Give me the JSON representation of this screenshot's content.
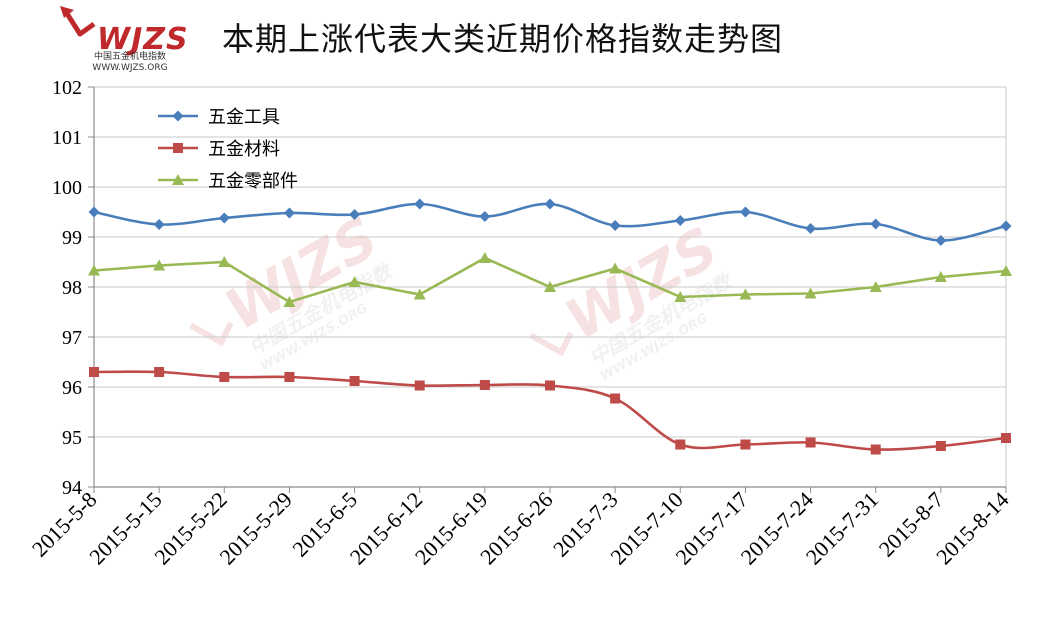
{
  "header": {
    "title": "本期上涨代表大类近期价格指数走势图",
    "logo_text": "WJZS",
    "logo_sub_cn": "中国五金机电指数",
    "logo_sub_url": "WWW.WJZS.ORG"
  },
  "watermark": {
    "mark": "WJZS",
    "cn": "中国五金机电指数",
    "url": "WWW.WJZS.ORG"
  },
  "chart_data": {
    "type": "line",
    "title": "本期上涨代表大类近期价格指数走势图",
    "categories": [
      "2015-5-8",
      "2015-5-15",
      "2015-5-22",
      "2015-5-29",
      "2015-6-5",
      "2015-6-12",
      "2015-6-19",
      "2015-6-26",
      "2015-7-3",
      "2015-7-10",
      "2015-7-17",
      "2015-7-24",
      "2015-7-31",
      "2015-8-7",
      "2015-8-14"
    ],
    "ylim": [
      94,
      102
    ],
    "yticks": [
      "94",
      "95",
      "96",
      "97",
      "98",
      "99",
      "100",
      "101",
      "102"
    ],
    "grid": true,
    "legend_position": "top-left",
    "series": [
      {
        "name": "五金工具",
        "color": "#4a7ebb",
        "marker": "diamond",
        "smooth": true,
        "values": [
          99.5,
          99.25,
          99.38,
          99.48,
          99.45,
          99.66,
          99.41,
          99.66,
          99.23,
          99.33,
          99.5,
          99.17,
          99.26,
          98.93,
          99.22
        ]
      },
      {
        "name": "五金材料",
        "color": "#be4b48",
        "marker": "square",
        "smooth": true,
        "values": [
          96.3,
          96.3,
          96.2,
          96.2,
          96.12,
          96.03,
          96.04,
          96.03,
          95.77,
          94.85,
          94.85,
          94.89,
          94.75,
          94.82,
          94.98
        ]
      },
      {
        "name": "五金零部件",
        "color": "#98b954",
        "marker": "triangle",
        "smooth": false,
        "values": [
          98.33,
          98.43,
          98.5,
          97.7,
          98.1,
          97.85,
          98.58,
          98.0,
          98.37,
          97.8,
          97.85,
          97.87,
          98.0,
          98.2,
          98.32
        ]
      }
    ]
  }
}
